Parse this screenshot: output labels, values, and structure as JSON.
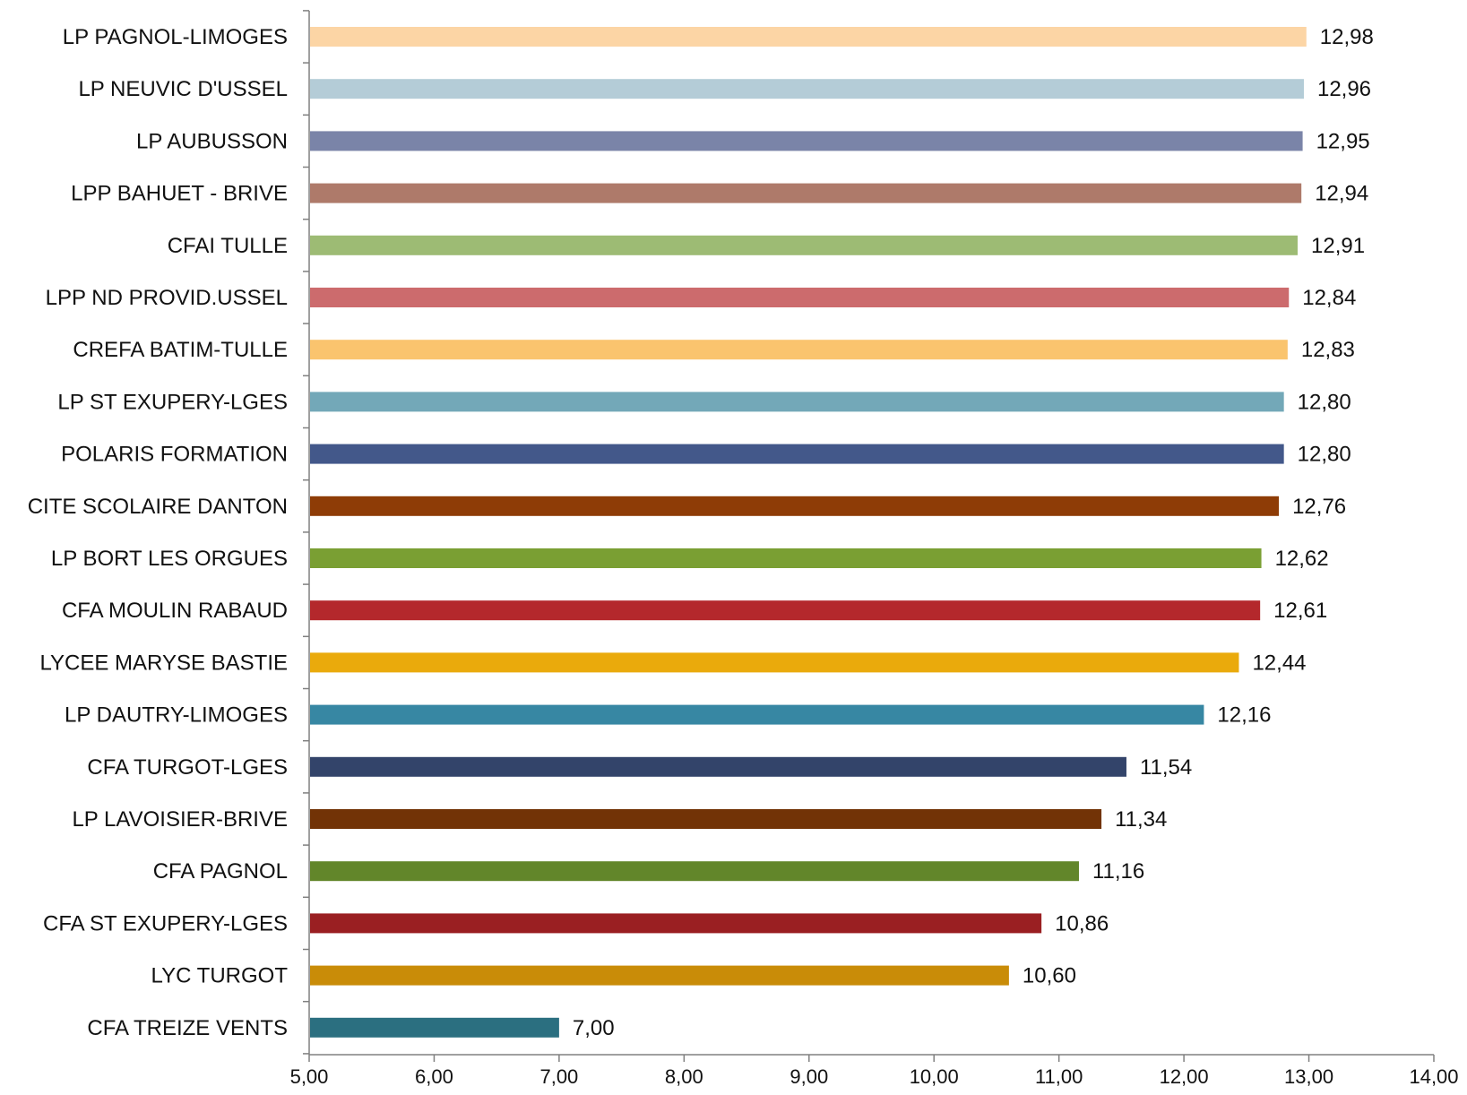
{
  "chart_data": {
    "type": "bar",
    "orientation": "horizontal",
    "title": "",
    "xlabel": "",
    "ylabel": "",
    "xlim": [
      5,
      14
    ],
    "x_ticks": [
      5,
      6,
      7,
      8,
      9,
      10,
      11,
      12,
      13,
      14
    ],
    "x_tick_labels": [
      "5,00",
      "6,00",
      "7,00",
      "8,00",
      "9,00",
      "10,00",
      "11,00",
      "12,00",
      "13,00",
      "14,00"
    ],
    "grid": false,
    "legend": "none",
    "categories": [
      "LP PAGNOL-LIMOGES",
      "LP NEUVIC D'USSEL",
      "LP AUBUSSON",
      "LPP BAHUET - BRIVE",
      "CFAI TULLE",
      "LPP ND PROVID.USSEL",
      "CREFA BATIM-TULLE",
      "LP ST EXUPERY-LGES",
      "POLARIS FORMATION",
      "CITE SCOLAIRE DANTON",
      "LP BORT LES ORGUES",
      "CFA MOULIN RABAUD",
      "LYCEE MARYSE BASTIE",
      "LP DAUTRY-LIMOGES",
      "CFA TURGOT-LGES",
      "LP LAVOISIER-BRIVE",
      "CFA PAGNOL",
      "CFA ST EXUPERY-LGES",
      "LYC  TURGOT",
      "CFA TREIZE VENTS"
    ],
    "values": [
      12.98,
      12.96,
      12.95,
      12.94,
      12.91,
      12.84,
      12.83,
      12.8,
      12.8,
      12.76,
      12.62,
      12.61,
      12.44,
      12.16,
      11.54,
      11.34,
      11.16,
      10.86,
      10.6,
      7.0
    ],
    "value_labels": [
      "12,98",
      "12,96",
      "12,95",
      "12,94",
      "12,91",
      "12,84",
      "12,83",
      "12,80",
      "12,80",
      "12,76",
      "12,62",
      "12,61",
      "12,44",
      "12,16",
      "11,54",
      "11,34",
      "11,16",
      "10,86",
      "10,60",
      "7,00"
    ],
    "colors": [
      "#FCD5A5",
      "#B4CCD7",
      "#7A84A8",
      "#AE7A6A",
      "#9DBB74",
      "#CC6B6D",
      "#FAC46E",
      "#73A8B8",
      "#43588A",
      "#8E3C06",
      "#7A9F33",
      "#B4282C",
      "#EAAA0C",
      "#3787A3",
      "#33446A",
      "#723306",
      "#62862A",
      "#9A1F22",
      "#C98C08",
      "#2B6F80"
    ]
  }
}
